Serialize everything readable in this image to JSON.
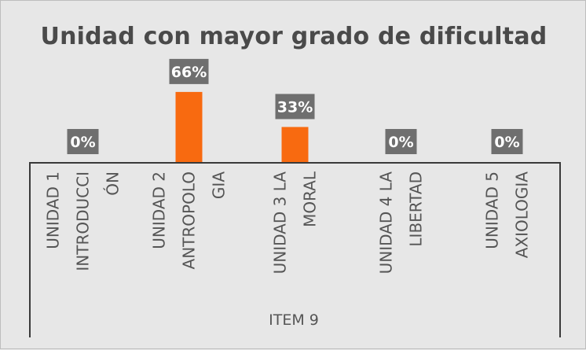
{
  "chart_data": {
    "type": "bar",
    "title": "Unidad con mayor grado de dificultad",
    "xlabel": "ITEM 9",
    "ylabel": "",
    "ylim": [
      0,
      1
    ],
    "categories": [
      [
        "UNIDAD 1",
        "INTRODUCCI",
        "ÓN"
      ],
      [
        "UNIDAD 2",
        "ANTROPOLO",
        "GIA"
      ],
      [
        "UNIDAD 3 LA",
        "MORAL"
      ],
      [
        "UNIDAD 4 LA",
        "LIBERTAD"
      ],
      [
        "UNIDAD 5",
        "AXIOLOGIA"
      ]
    ],
    "values": [
      0,
      0.66,
      0.33,
      0,
      0
    ],
    "data_labels": [
      "0%",
      "66%",
      "33%",
      "0%",
      "0%"
    ],
    "bar_color": "#f86a10",
    "label_bg_color": "#6f6f6f",
    "grid": false,
    "legend": "none"
  }
}
